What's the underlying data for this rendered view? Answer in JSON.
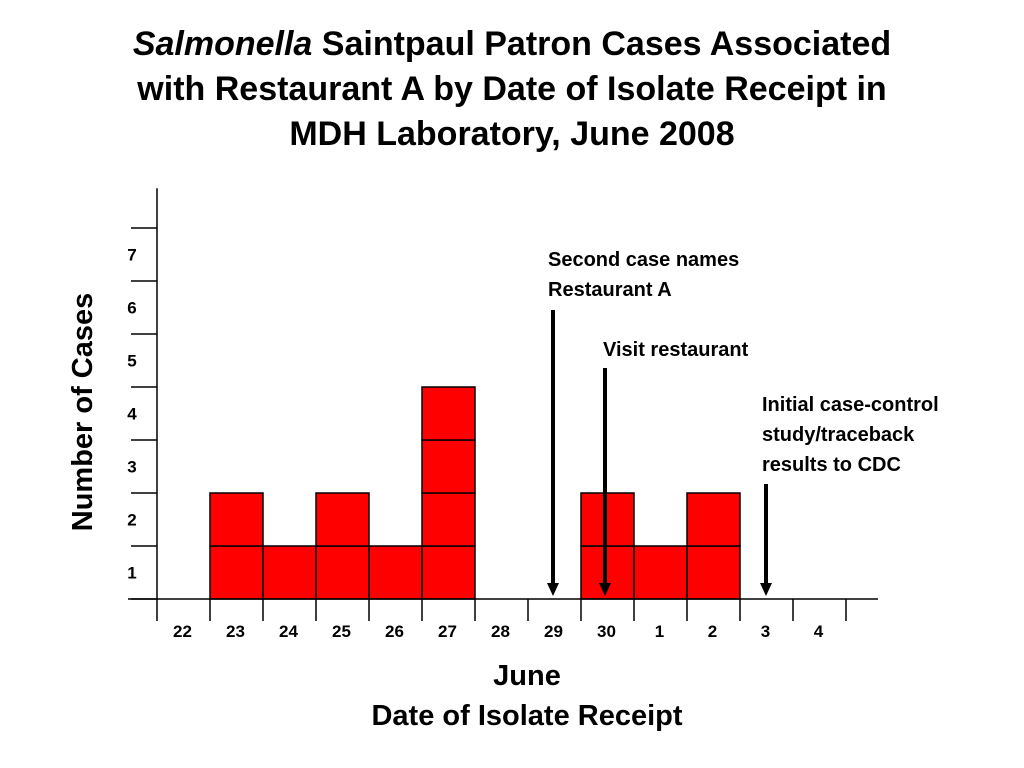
{
  "title": {
    "italic": "Salmonella",
    "line1_rest": " Saintpaul Patron Cases Associated",
    "line2": "with Restaurant A by Date of Isolate Receipt in",
    "line3": "MDH Laboratory, June 2008"
  },
  "chart_data": {
    "type": "bar",
    "title": "Salmonella Saintpaul Patron Cases Associated with Restaurant A by Date of Isolate Receipt in MDH Laboratory, June 2008",
    "xlabel": [
      "June",
      "Date of Isolate Receipt"
    ],
    "ylabel": "Number of Cases",
    "categories": [
      "22",
      "23",
      "24",
      "25",
      "26",
      "27",
      "28",
      "29",
      "30",
      "1",
      "2",
      "3",
      "4"
    ],
    "values": [
      0,
      2,
      1,
      2,
      1,
      4,
      0,
      0,
      2,
      1,
      2,
      0,
      0
    ],
    "y_ticks": [
      1,
      2,
      3,
      4,
      5,
      6,
      7
    ],
    "bar_color": "#ff0000",
    "stacked_unit_boxes": true,
    "annotations": [
      {
        "lines": [
          "Second case names",
          "Restaurant A"
        ],
        "category": "29"
      },
      {
        "lines": [
          "Visit restaurant"
        ],
        "category": "30"
      },
      {
        "lines": [
          "Initial case-control",
          "study/traceback",
          "results to CDC"
        ],
        "category": "3"
      }
    ]
  }
}
